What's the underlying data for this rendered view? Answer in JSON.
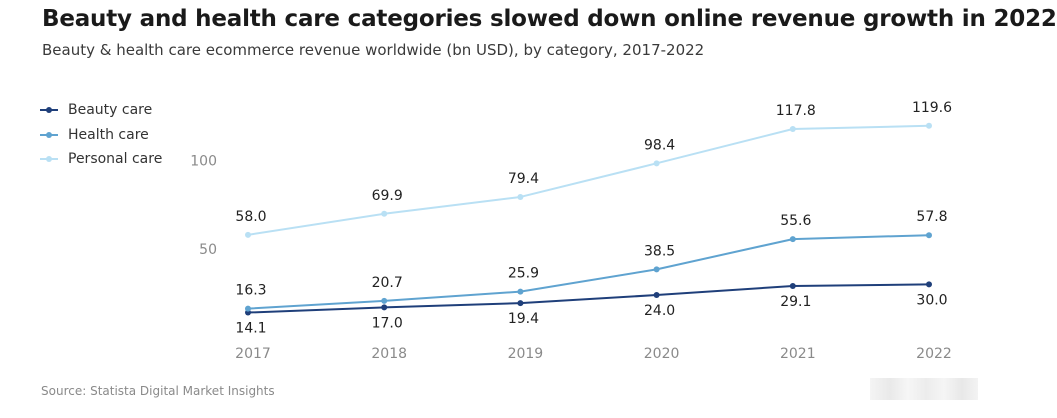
{
  "title": "Beauty and health care categories slowed down online revenue growth in 2022",
  "subtitle": "Beauty & health care ecommerce revenue worldwide (bn USD), by category, 2017-2022",
  "source": "Source: Statista Digital Market Insights",
  "chart_data": {
    "type": "line",
    "title": "Beauty and health care categories slowed down online revenue growth in 2022",
    "subtitle": "Beauty & health care ecommerce revenue worldwide (bn USD), by category, 2017-2022",
    "categories": [
      "2017",
      "2018",
      "2019",
      "2020",
      "2021",
      "2022"
    ],
    "y_ticks": [
      50,
      100
    ],
    "ylim": [
      0,
      125
    ],
    "grid": false,
    "legend_position": "top-left",
    "series": [
      {
        "name": "Beauty care",
        "color": "#1f3f7a",
        "values": [
          14.1,
          17.0,
          19.4,
          24.0,
          29.1,
          30.0
        ],
        "label_position": "below"
      },
      {
        "name": "Health care",
        "color": "#5fa3d0",
        "values": [
          16.3,
          20.7,
          25.9,
          38.5,
          55.6,
          57.8
        ],
        "label_position": "above"
      },
      {
        "name": "Personal care",
        "color": "#b9e0f4",
        "values": [
          58.0,
          69.9,
          79.4,
          98.4,
          117.8,
          119.6
        ],
        "label_position": "above"
      }
    ]
  }
}
